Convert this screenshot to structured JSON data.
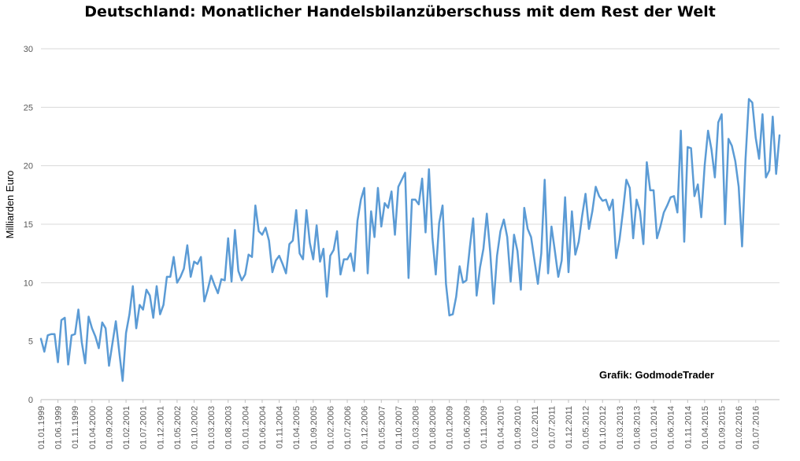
{
  "chart_data": {
    "type": "line",
    "title": "Deutschland: Monatlicher Handelsbilanzüberschuss mit dem Rest der Welt",
    "ylabel": "Milliarden Euro",
    "xlabel": "",
    "ylim": [
      0,
      30
    ],
    "yticks": [
      0,
      5,
      10,
      15,
      20,
      25,
      30
    ],
    "grid": true,
    "legend": "none",
    "line_color": "#5b9bd5",
    "credit": "Grafik: GodmodeTrader",
    "start": "01.01.1999",
    "xtick_labels": [
      "01.01.1999",
      "01.06.1999",
      "01.11.1999",
      "01.04.2000",
      "01.09.2000",
      "01.02.2001",
      "01.07.2001",
      "01.12.2001",
      "01.05.2002",
      "01.10.2002",
      "01.03.2003",
      "01.08.2003",
      "01.01.2004",
      "01.06.2004",
      "01.11.2004",
      "01.04.2005",
      "01.09.2005",
      "01.02.2006",
      "01.07.2006",
      "01.12.2006",
      "01.05.2007",
      "01.10.2007",
      "01.03.2008",
      "01.08.2008",
      "01.01.2009",
      "01.06.2009",
      "01.11.2009",
      "01.04.2010",
      "01.09.2010",
      "01.02.2011",
      "01.07.2011",
      "01.12.2011",
      "01.05.2012",
      "01.10.2012",
      "01.03.2013",
      "01.08.2013",
      "01.01.2014",
      "01.06.2014",
      "01.11.2014",
      "01.04.2015",
      "01.09.2015",
      "01.02.2016",
      "01.07.2016"
    ],
    "series": [
      {
        "values": [
          5.2,
          4.1,
          5.5,
          5.6,
          5.6,
          3.2,
          6.8,
          7.0,
          3.0,
          5.5,
          5.6,
          7.7,
          4.9,
          3.1,
          7.1,
          6.1,
          5.4,
          4.4,
          6.6,
          6.1,
          2.9,
          4.8,
          6.7,
          4.1,
          1.6,
          5.7,
          7.3,
          9.7,
          6.1,
          8.1,
          7.7,
          9.4,
          8.9,
          7.0,
          9.7,
          7.3,
          8.1,
          10.5,
          10.5,
          12.2,
          10.0,
          10.5,
          11.2,
          13.2,
          10.5,
          11.8,
          11.6,
          12.2,
          8.4,
          9.4,
          10.6,
          9.8,
          9.1,
          10.3,
          10.2,
          13.8,
          10.1,
          14.5,
          11.0,
          10.2,
          10.7,
          12.4,
          12.2,
          16.6,
          14.4,
          14.1,
          14.7,
          13.6,
          10.9,
          11.9,
          12.3,
          11.6,
          10.8,
          13.3,
          13.6,
          16.2,
          12.5,
          12.0,
          16.2,
          13.4,
          12.0,
          14.9,
          11.8,
          12.9,
          8.8,
          12.3,
          12.8,
          14.4,
          10.7,
          12.0,
          12.0,
          12.5,
          11.0,
          15.3,
          17.1,
          18.1,
          10.8,
          16.1,
          13.9,
          18.1,
          14.8,
          16.8,
          16.4,
          17.8,
          14.1,
          18.2,
          18.8,
          19.4,
          10.4,
          17.1,
          17.1,
          16.7,
          18.9,
          14.3,
          19.7,
          13.9,
          10.7,
          15.1,
          16.6,
          9.9,
          7.2,
          7.3,
          8.8,
          11.4,
          10.0,
          10.2,
          13.0,
          15.5,
          8.9,
          11.3,
          12.9,
          15.9,
          12.6,
          8.2,
          12.3,
          14.4,
          15.4,
          13.9,
          10.1,
          14.1,
          12.7,
          9.4,
          16.4,
          14.6,
          13.9,
          11.9,
          9.9,
          12.5,
          18.8,
          10.8,
          14.8,
          12.7,
          10.5,
          11.9,
          17.3,
          10.9,
          16.1,
          12.4,
          13.5,
          15.7,
          17.6,
          14.6,
          16.1,
          18.2,
          17.4,
          17.0,
          17.1,
          16.2,
          17.1,
          12.1,
          13.7,
          16.1,
          18.8,
          18.1,
          13.8,
          17.1,
          16.1,
          13.3,
          20.3,
          17.9,
          17.9,
          13.8,
          14.8,
          16.0,
          16.6,
          17.3,
          17.4,
          16.0,
          23.0,
          13.5,
          21.6,
          21.5,
          17.4,
          18.4,
          15.6,
          20.0,
          23.0,
          21.4,
          19.0,
          23.7,
          24.4,
          15.0,
          22.3,
          21.7,
          20.4,
          18.2,
          13.1,
          20.5,
          25.7,
          25.4,
          22.4,
          20.6,
          24.4,
          19.0,
          19.6,
          24.2,
          19.3,
          22.6
        ]
      }
    ]
  }
}
